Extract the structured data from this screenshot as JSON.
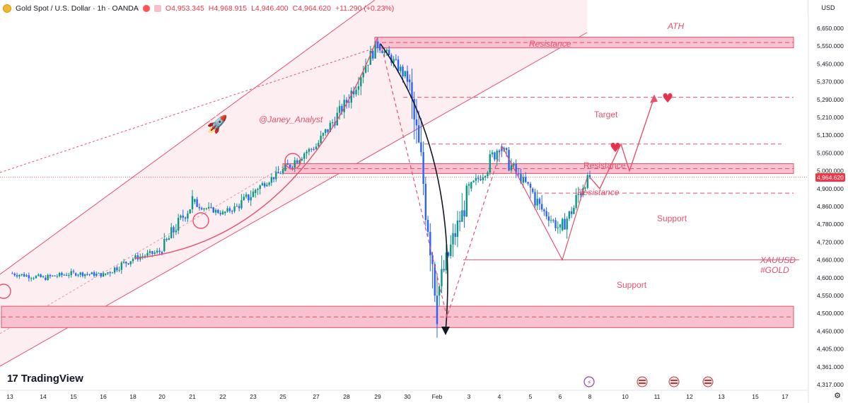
{
  "header": {
    "symbol": "Gold Spot / U.S. Dollar · 1h · OANDA",
    "open": "O4,953.345",
    "high": "H4,968.915",
    "low": "L4,946.400",
    "close": "C4,964.620",
    "change": "+11.290 (+0.23%)"
  },
  "currency": "USD",
  "brand": "TradingView",
  "last_price_label": "4,964.620",
  "annotations": {
    "ath": "ATH",
    "resistance_top": "Resistance",
    "target": "Target",
    "resistance_mid": "Resistance",
    "resistance_zone": "Resistance",
    "support_upper": "Support",
    "support_lower": "Support",
    "author": "@Janey_Analyst",
    "symbol_tag": "XAUUSD",
    "symbol_tag2": "#GOLD"
  },
  "colors": {
    "up": "#089981",
    "down": "#2962ff",
    "accent": "#e8506e",
    "zone_fill": "#f7c1cf",
    "channel_fill": "#fdecee",
    "badge": "#f23645"
  },
  "icons": [
    "rocket-icon",
    "heart-icon",
    "heart-icon",
    "lightning-icon",
    "us-flag-icon",
    "us-flag-icon",
    "us-flag-icon"
  ],
  "chart_data": {
    "type": "candlestick",
    "x_axis_labels": [
      "13",
      "14",
      "15",
      "16",
      "18",
      "20",
      "21",
      "22",
      "23",
      "25",
      "27",
      "28",
      "29",
      "30",
      "Feb",
      "3",
      "4",
      "5",
      "6",
      "8",
      "10",
      "11",
      "12",
      "13",
      "15",
      "17"
    ],
    "y_axis_labels": [
      "6,650.000",
      "5,550.000",
      "5,450.000",
      "5,370.000",
      "5,290.000",
      "5,210.000",
      "5,130.000",
      "5,050.000",
      "5,000.000",
      "4,900.000",
      "4,860.000",
      "4,780.000",
      "4,720.000",
      "4,660.000",
      "4,600.000",
      "4,550.000",
      "4,500.000",
      "4,450.000",
      "4,405.000",
      "4,361.000",
      "4,317.000"
    ],
    "y_range": [
      4317,
      5650
    ],
    "last_price": 4964.62,
    "ohlc_last": {
      "open": 4953.345,
      "high": 4968.915,
      "low": 4946.4,
      "close": 4964.62
    },
    "price_path": [
      {
        "x": "13",
        "y": 4615
      },
      {
        "x": "14",
        "y": 4600
      },
      {
        "x": "15",
        "y": 4615
      },
      {
        "x": "16",
        "y": 4610
      },
      {
        "x": "18",
        "y": 4665
      },
      {
        "x": "20",
        "y": 4690
      },
      {
        "x": "21",
        "y": 4870
      },
      {
        "x": "22",
        "y": 4830
      },
      {
        "x": "23",
        "y": 4890
      },
      {
        "x": "25",
        "y": 5000
      },
      {
        "x": "27",
        "y": 5080
      },
      {
        "x": "28",
        "y": 5280
      },
      {
        "x": "29",
        "y": 5560
      },
      {
        "x": "30",
        "y": 5380
      },
      {
        "x": "Feb",
        "y": 4550
      },
      {
        "x": "3",
        "y": 4900
      },
      {
        "x": "4",
        "y": 5080
      },
      {
        "x": "5",
        "y": 4900
      },
      {
        "x": "6",
        "y": 4760
      },
      {
        "x": "8",
        "y": 4964
      }
    ],
    "levels": {
      "ath_resistance_zone": [
        5540,
        5600
      ],
      "resistance_zone": [
        4985,
        5020
      ],
      "resistance_line": 5090,
      "target_line": 5300,
      "support_upper": 4890,
      "support_lower": 4660,
      "bottom_support_zone": [
        4460,
        4520
      ]
    },
    "projection": [
      {
        "x": "8",
        "y": 4964
      },
      {
        "x": "8",
        "y": 4900
      },
      {
        "x": "10",
        "y": 5090
      },
      {
        "x": "10",
        "y": 5000
      },
      {
        "x": "11",
        "y": 5300
      }
    ]
  }
}
